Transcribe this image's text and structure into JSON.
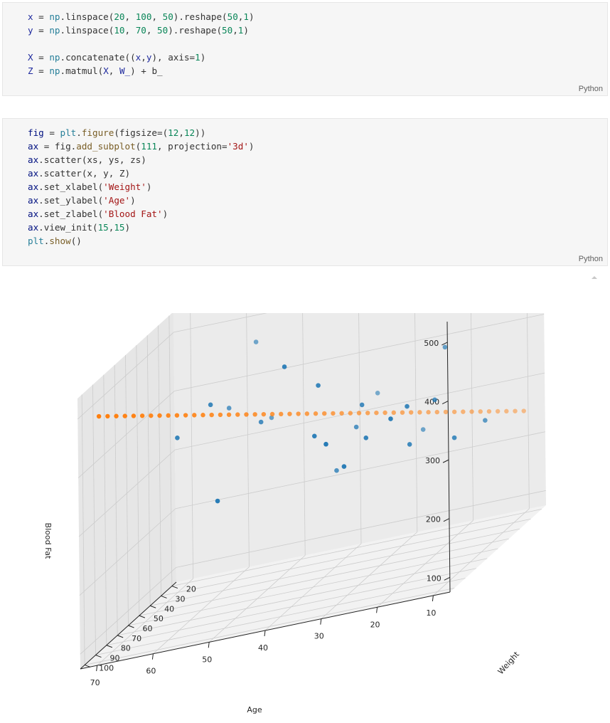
{
  "cells": [
    {
      "language": "Python",
      "lines": [
        [
          [
            "x",
            "var"
          ],
          [
            " = ",
            "op"
          ],
          [
            "np",
            "mod"
          ],
          [
            ".linspace(",
            "op"
          ],
          [
            "20",
            "num"
          ],
          [
            ", ",
            "op"
          ],
          [
            "100",
            "num"
          ],
          [
            ", ",
            "op"
          ],
          [
            "50",
            "num"
          ],
          [
            ").reshape(",
            "op"
          ],
          [
            "50",
            "num"
          ],
          [
            ",",
            "op"
          ],
          [
            "1",
            "num"
          ],
          [
            ")",
            "op"
          ]
        ],
        [
          [
            "y",
            "var"
          ],
          [
            " = ",
            "op"
          ],
          [
            "np",
            "mod"
          ],
          [
            ".linspace(",
            "op"
          ],
          [
            "10",
            "num"
          ],
          [
            ", ",
            "op"
          ],
          [
            "70",
            "num"
          ],
          [
            ", ",
            "op"
          ],
          [
            "50",
            "num"
          ],
          [
            ").reshape(",
            "op"
          ],
          [
            "50",
            "num"
          ],
          [
            ",",
            "op"
          ],
          [
            "1",
            "num"
          ],
          [
            ")",
            "op"
          ]
        ],
        [],
        [
          [
            "X",
            "var"
          ],
          [
            " = ",
            "op"
          ],
          [
            "np",
            "mod"
          ],
          [
            ".concatenate((",
            "op"
          ],
          [
            "x",
            "var"
          ],
          [
            ",",
            "op"
          ],
          [
            "y",
            "var"
          ],
          [
            "), axis=",
            "op"
          ],
          [
            "1",
            "num"
          ],
          [
            ")",
            "op"
          ]
        ],
        [
          [
            "Z",
            "var"
          ],
          [
            " = ",
            "op"
          ],
          [
            "np",
            "mod"
          ],
          [
            ".matmul(",
            "op"
          ],
          [
            "X",
            "var"
          ],
          [
            ", ",
            "op"
          ],
          [
            "W_",
            "var"
          ],
          [
            ") + b_",
            "op"
          ]
        ]
      ]
    },
    {
      "language": "Python",
      "lines": [
        [
          [
            "fig",
            "kw"
          ],
          [
            " = ",
            "op"
          ],
          [
            "plt",
            "mod"
          ],
          [
            ".",
            "op"
          ],
          [
            "figure",
            "fn"
          ],
          [
            "(figsize=(",
            "op"
          ],
          [
            "12",
            "num"
          ],
          [
            ",",
            "op"
          ],
          [
            "12",
            "num"
          ],
          [
            "))",
            "op"
          ]
        ],
        [
          [
            "ax",
            "kw"
          ],
          [
            " = fig.",
            "op"
          ],
          [
            "add_subplot",
            "fn"
          ],
          [
            "(",
            "op"
          ],
          [
            "111",
            "num"
          ],
          [
            ", projection=",
            "op"
          ],
          [
            "'3d'",
            "str"
          ],
          [
            ")",
            "op"
          ]
        ],
        [
          [
            "ax",
            "kw"
          ],
          [
            ".scatter(xs, ys, zs)",
            "op"
          ]
        ],
        [
          [
            "ax",
            "kw"
          ],
          [
            ".scatter(x, y, Z)",
            "op"
          ]
        ],
        [
          [
            "ax",
            "kw"
          ],
          [
            ".set_xlabel(",
            "op"
          ],
          [
            "'Weight'",
            "str"
          ],
          [
            ")",
            "op"
          ]
        ],
        [
          [
            "ax",
            "kw"
          ],
          [
            ".set_ylabel(",
            "op"
          ],
          [
            "'Age'",
            "str"
          ],
          [
            ")",
            "op"
          ]
        ],
        [
          [
            "ax",
            "kw"
          ],
          [
            ".set_zlabel(",
            "op"
          ],
          [
            "'Blood Fat'",
            "str"
          ],
          [
            ")",
            "op"
          ]
        ],
        [
          [
            "ax",
            "kw"
          ],
          [
            ".view_init(",
            "op"
          ],
          [
            "15",
            "num"
          ],
          [
            ",",
            "op"
          ],
          [
            "15",
            "num"
          ],
          [
            ")",
            "op"
          ]
        ],
        [
          [
            "plt",
            "mod"
          ],
          [
            ".",
            "op"
          ],
          [
            "show",
            "fn"
          ],
          [
            "()",
            "op"
          ]
        ]
      ]
    }
  ],
  "chart_data": {
    "type": "scatter",
    "projection": "3d",
    "view": {
      "elev": 15,
      "azim": 15
    },
    "xlabel": "Weight",
    "ylabel": "Age",
    "zlabel": "Blood Fat",
    "xticks": [
      20,
      30,
      40,
      50,
      60,
      70,
      80,
      90,
      100
    ],
    "yticks": [
      10,
      20,
      30,
      40,
      50,
      60,
      70
    ],
    "zticks": [
      100,
      200,
      300,
      400,
      500
    ],
    "xlim": [
      16,
      104
    ],
    "ylim": [
      7,
      73
    ],
    "zlim": [
      75,
      535
    ],
    "grid": true,
    "colors": {
      "scatter": "#1f77b4",
      "fit_line": "#ff7f0e",
      "pane": "#f2f2f2",
      "grid": "#cccccc"
    },
    "series": [
      {
        "kind": "observed",
        "points": [
          {
            "x": 84,
            "y": 40,
            "z": 490
          },
          {
            "x": 28,
            "y": 56,
            "z": 470
          },
          {
            "x": 79,
            "y": 35,
            "z": 440
          },
          {
            "x": 75,
            "y": 55,
            "z": 440
          },
          {
            "x": 40,
            "y": 20,
            "z": 410
          },
          {
            "x": 80,
            "y": 60,
            "z": 402
          },
          {
            "x": 48,
            "y": 57,
            "z": 393
          },
          {
            "x": 70,
            "y": 29,
            "z": 380
          },
          {
            "x": 65,
            "y": 48,
            "z": 380
          },
          {
            "x": 90,
            "y": 20,
            "z": 372
          },
          {
            "x": 75,
            "y": 20,
            "z": 368
          },
          {
            "x": 88,
            "y": 34,
            "z": 367
          },
          {
            "x": 98,
            "y": 30,
            "z": 362
          },
          {
            "x": 60,
            "y": 18,
            "z": 350
          },
          {
            "x": 35,
            "y": 52,
            "z": 345
          },
          {
            "x": 82,
            "y": 26,
            "z": 338
          },
          {
            "x": 20,
            "y": 36,
            "z": 330
          },
          {
            "x": 55,
            "y": 33,
            "z": 325
          },
          {
            "x": 92,
            "y": 28,
            "z": 310
          },
          {
            "x": 73,
            "y": 20,
            "z": 300
          },
          {
            "x": 95,
            "y": 50,
            "z": 300
          },
          {
            "x": 68,
            "y": 13,
            "z": 289
          },
          {
            "x": 45,
            "y": 12,
            "z": 278
          },
          {
            "x": 30,
            "y": 26,
            "z": 265
          },
          {
            "x": 58,
            "y": 36,
            "z": 262
          }
        ]
      },
      {
        "kind": "fitted",
        "x_range": [
          20,
          100
        ],
        "y_range": [
          10,
          70
        ],
        "n": 50,
        "z_range": [
          248,
          492
        ]
      }
    ]
  }
}
